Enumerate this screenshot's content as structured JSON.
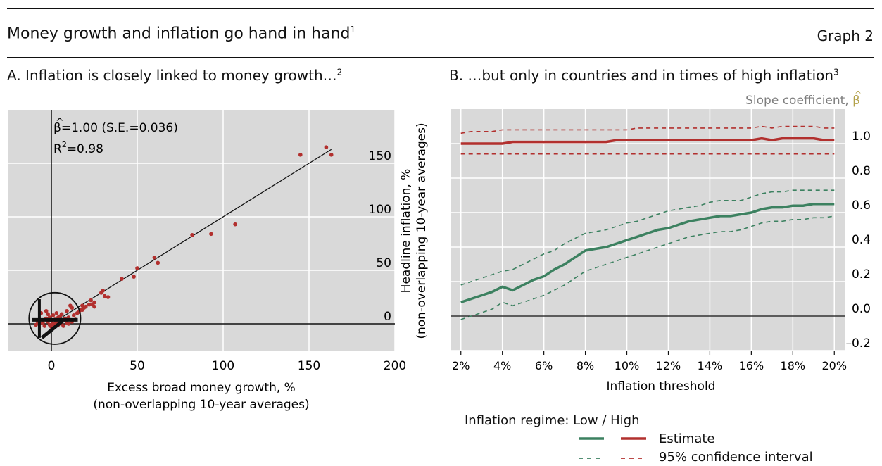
{
  "header": {
    "title": "Money growth and inflation go hand in hand",
    "title_note": "1",
    "graph_label": "Graph 2"
  },
  "panel_a": {
    "title": "A. Inflation is closely linked to money growth…",
    "title_note": "2",
    "annotation_beta_symbol": "β",
    "annotation_beta_hat": "^",
    "annotation_beta_rest": "=1.00 (S.E.=0.036)",
    "annotation_r2_base": "R",
    "annotation_r2_exp": "2",
    "annotation_r2_rest": "=0.98",
    "xlabel_line1": "Excess broad money growth, %",
    "xlabel_line2": "(non-overlapping 10-year averages)",
    "ylabel_line1": "Headline inflation, %",
    "ylabel_line2": "(non-overlapping 10-year averages)"
  },
  "panel_b": {
    "title": "B. …but only in countries and in times of high inflation",
    "title_note": "3",
    "right_axis_label": "Slope coefficient, ",
    "right_axis_symbol": "β",
    "right_axis_hat": "^",
    "xlabel": "Inflation threshold"
  },
  "legend": {
    "heading": "Inflation regime: Low / High",
    "estimate_label": "Estimate",
    "ci_label": "95% confidence interval"
  },
  "colors": {
    "panel_bg": "#d9d9d9",
    "grid": "#ffffff",
    "red": "#b2302e",
    "green": "#3c8160",
    "scatter_point": "#b2302e",
    "axis": "#111111",
    "muted_text": "#7f7f7f"
  },
  "chart_data": [
    {
      "type": "scatter",
      "title": "A. Inflation is closely linked to money growth…",
      "xlabel": "Excess broad money growth, % (non-overlapping 10-year averages)",
      "ylabel": "Headline inflation, % (non-overlapping 10-year averages)",
      "xlim": [
        -25,
        200
      ],
      "ylim": [
        -25,
        200
      ],
      "xticks": [
        0,
        50,
        100,
        150,
        200
      ],
      "yticks": [
        0,
        50,
        100,
        150
      ],
      "grid": true,
      "y_axis_side": "right",
      "fit_line": {
        "slope": 1.0,
        "intercept": 0,
        "x_range": [
          0,
          163
        ]
      },
      "annotations": [
        "β̂=1.00 (S.E.=0.036)",
        "R²=0.98"
      ],
      "highlight_circle": {
        "center": [
          2,
          5
        ],
        "radius_data": 15
      },
      "points": [
        [
          160,
          165
        ],
        [
          145,
          158
        ],
        [
          163,
          158
        ],
        [
          107,
          93
        ],
        [
          93,
          84
        ],
        [
          82,
          83
        ],
        [
          62,
          57
        ],
        [
          60,
          62
        ],
        [
          50,
          52
        ],
        [
          48,
          44
        ],
        [
          41,
          42
        ],
        [
          33,
          25
        ],
        [
          31,
          26
        ],
        [
          30,
          31
        ],
        [
          29,
          29
        ],
        [
          25,
          20
        ],
        [
          25,
          16
        ],
        [
          24,
          18
        ],
        [
          23,
          22
        ],
        [
          22,
          18
        ],
        [
          20,
          16
        ],
        [
          19,
          15
        ],
        [
          18,
          17
        ],
        [
          18,
          13
        ],
        [
          17,
          13
        ],
        [
          16,
          11
        ],
        [
          15,
          10
        ],
        [
          13,
          8
        ],
        [
          12,
          15
        ],
        [
          11,
          17
        ],
        [
          10,
          6
        ],
        [
          9,
          12
        ],
        [
          8,
          5
        ],
        [
          7,
          3
        ],
        [
          6,
          9
        ],
        [
          5,
          2
        ],
        [
          4,
          6
        ],
        [
          3,
          1
        ],
        [
          2,
          4
        ],
        [
          1,
          0
        ],
        [
          0,
          3
        ],
        [
          -1,
          -1
        ],
        [
          -2,
          2
        ],
        [
          -3,
          5
        ],
        [
          -4,
          -2
        ],
        [
          -5,
          1
        ],
        [
          -6,
          10
        ],
        [
          -7,
          0
        ],
        [
          -8,
          2
        ],
        [
          -9,
          -1
        ],
        [
          14,
          4
        ],
        [
          12,
          2
        ],
        [
          10,
          0
        ],
        [
          9,
          1
        ],
        [
          7,
          -2
        ],
        [
          6,
          0
        ],
        [
          5,
          7
        ],
        [
          3,
          10
        ],
        [
          1,
          8
        ],
        [
          -1,
          6
        ],
        [
          -2,
          9
        ],
        [
          -3,
          12
        ],
        [
          2,
          -2
        ],
        [
          0,
          -3
        ],
        [
          4,
          -1
        ]
      ]
    },
    {
      "type": "line",
      "title": "B. …but only in countries and in times of high inflation",
      "xlabel": "Inflation threshold",
      "ylabel": "Slope coefficient, β̂",
      "y_axis_side": "right",
      "xlim": [
        1.5,
        20.5
      ],
      "ylim": [
        -0.2,
        1.2
      ],
      "yticks": [
        -0.2,
        0.0,
        0.2,
        0.4,
        0.6,
        0.8,
        1.0
      ],
      "ytick_labels": [
        "–0.2",
        "0.0",
        "0.2",
        "0.4",
        "0.6",
        "0.8",
        "1.0"
      ],
      "xticks": [
        2,
        4,
        6,
        8,
        10,
        12,
        14,
        16,
        18,
        20
      ],
      "xtick_labels": [
        "2%",
        "4%",
        "6%",
        "8%",
        "10%",
        "12%",
        "14%",
        "16%",
        "18%",
        "20%"
      ],
      "grid": true,
      "x": [
        2.0,
        2.5,
        3.0,
        3.5,
        4.0,
        4.5,
        5.0,
        5.5,
        6.0,
        6.5,
        7.0,
        7.5,
        8.0,
        8.5,
        9.0,
        9.5,
        10.0,
        10.5,
        11.0,
        11.5,
        12.0,
        12.5,
        13.0,
        13.5,
        14.0,
        14.5,
        15.0,
        15.5,
        16.0,
        16.5,
        17.0,
        17.5,
        18.0,
        18.5,
        19.0,
        19.5,
        20.0
      ],
      "series": [
        {
          "name": "Low",
          "style": "estimate",
          "values": [
            0.08,
            0.1,
            0.12,
            0.14,
            0.17,
            0.15,
            0.18,
            0.21,
            0.23,
            0.27,
            0.3,
            0.34,
            0.38,
            0.39,
            0.4,
            0.42,
            0.44,
            0.46,
            0.48,
            0.5,
            0.51,
            0.53,
            0.55,
            0.56,
            0.57,
            0.58,
            0.58,
            0.59,
            0.6,
            0.62,
            0.63,
            0.63,
            0.64,
            0.64,
            0.65,
            0.65,
            0.65
          ]
        },
        {
          "name": "Low",
          "style": "ci_upper",
          "values": [
            0.18,
            0.2,
            0.22,
            0.24,
            0.26,
            0.27,
            0.3,
            0.33,
            0.36,
            0.38,
            0.42,
            0.45,
            0.48,
            0.49,
            0.5,
            0.52,
            0.54,
            0.55,
            0.57,
            0.59,
            0.61,
            0.62,
            0.63,
            0.64,
            0.66,
            0.67,
            0.67,
            0.67,
            0.69,
            0.71,
            0.72,
            0.72,
            0.73,
            0.73,
            0.73,
            0.73,
            0.73
          ]
        },
        {
          "name": "Low",
          "style": "ci_lower",
          "values": [
            -0.02,
            0.0,
            0.02,
            0.04,
            0.08,
            0.06,
            0.08,
            0.1,
            0.12,
            0.15,
            0.18,
            0.22,
            0.26,
            0.28,
            0.3,
            0.32,
            0.34,
            0.36,
            0.38,
            0.4,
            0.42,
            0.44,
            0.46,
            0.47,
            0.48,
            0.49,
            0.49,
            0.5,
            0.52,
            0.54,
            0.55,
            0.55,
            0.56,
            0.56,
            0.57,
            0.57,
            0.58
          ]
        },
        {
          "name": "High",
          "style": "estimate",
          "values": [
            1.0,
            1.0,
            1.0,
            1.0,
            1.0,
            1.01,
            1.01,
            1.01,
            1.01,
            1.01,
            1.01,
            1.01,
            1.01,
            1.01,
            1.01,
            1.02,
            1.02,
            1.02,
            1.02,
            1.02,
            1.02,
            1.02,
            1.02,
            1.02,
            1.02,
            1.02,
            1.02,
            1.02,
            1.02,
            1.03,
            1.02,
            1.03,
            1.03,
            1.03,
            1.03,
            1.02,
            1.02
          ]
        },
        {
          "name": "High",
          "style": "ci_upper",
          "values": [
            1.06,
            1.07,
            1.07,
            1.07,
            1.08,
            1.08,
            1.08,
            1.08,
            1.08,
            1.08,
            1.08,
            1.08,
            1.08,
            1.08,
            1.08,
            1.08,
            1.08,
            1.09,
            1.09,
            1.09,
            1.09,
            1.09,
            1.09,
            1.09,
            1.09,
            1.09,
            1.09,
            1.09,
            1.09,
            1.1,
            1.09,
            1.1,
            1.1,
            1.1,
            1.1,
            1.09,
            1.09
          ]
        },
        {
          "name": "High",
          "style": "ci_lower",
          "values": [
            0.94,
            0.94,
            0.94,
            0.94,
            0.94,
            0.94,
            0.94,
            0.94,
            0.94,
            0.94,
            0.94,
            0.94,
            0.94,
            0.94,
            0.94,
            0.94,
            0.94,
            0.94,
            0.94,
            0.94,
            0.94,
            0.94,
            0.94,
            0.94,
            0.94,
            0.94,
            0.94,
            0.94,
            0.94,
            0.94,
            0.94,
            0.94,
            0.94,
            0.94,
            0.94,
            0.94,
            0.94
          ]
        }
      ]
    }
  ]
}
